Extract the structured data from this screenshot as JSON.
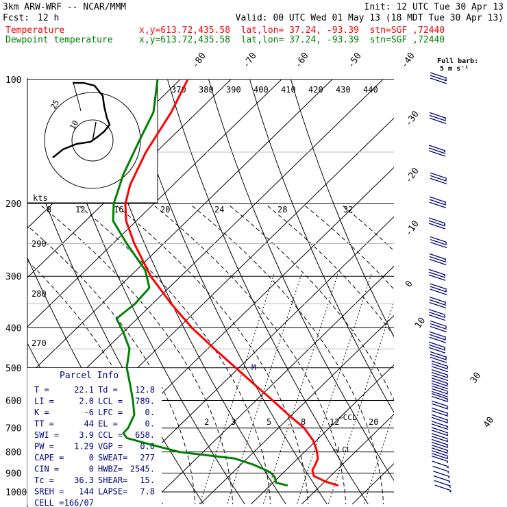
{
  "header": {
    "model": "3km ARW-WRF -- NCAR/MMM",
    "init": "Init: 12 UTC Tue 30 Apr 13",
    "fcst_label": "Fcst:",
    "fcst_value": "12 h",
    "valid": "Valid: 00 UTC Wed 01 May 13 (18 MDT Tue 30 Apr 13)",
    "temp_line": {
      "name": "Temperature",
      "info": "x,y=613.72,435.58  lat,lon= 37.24, -93.39  stn=SGF ,72440"
    },
    "dew_line": {
      "name": "Dewpoint temperature",
      "info": "x,y=613.72,435.58  lat,lon= 37.24, -93.39  stn=SGF ,72440"
    }
  },
  "barb_legend": {
    "line1": "Full barb:",
    "line2": "5 m s⁻¹"
  },
  "hodograph": {
    "unit": "kts",
    "ring_labels": [
      "10",
      "25"
    ]
  },
  "parcel_info": {
    "title": "Parcel Info",
    "rows": [
      [
        "T  =",
        "22.1",
        "Td  =",
        "12.8"
      ],
      [
        "LI =",
        "2.0",
        "LCL =",
        "789."
      ],
      [
        "K  =",
        "-6",
        "LFC =",
        "0."
      ],
      [
        "TT =",
        "44",
        "EL  =",
        "0."
      ],
      [
        "SWI =",
        "3.9",
        "CCL =",
        "658."
      ],
      [
        "PW =",
        "1.29",
        "VGP =",
        "0.0"
      ],
      [
        "CAPE =",
        "0",
        "SWEAT=",
        "277"
      ],
      [
        "CIN =",
        "0",
        "HWBZ=",
        "2545."
      ],
      [
        "Tc =",
        "36.3",
        "SHEAR=",
        "15."
      ],
      [
        "SREH =",
        "144",
        "LAPSE=",
        "7.8"
      ],
      [
        "CELL =",
        "166/07",
        "",
        ""
      ]
    ]
  },
  "chart_data": {
    "type": "line",
    "subtype": "skew-T log-P sounding",
    "y_axis": {
      "label": "",
      "scale": "log",
      "range": [
        1000,
        100
      ],
      "ticks": [
        100,
        200,
        300,
        400,
        500,
        600,
        700,
        800,
        900,
        1000
      ]
    },
    "isotherm_labels_top": [
      "-80",
      "-70",
      "-60",
      "-50",
      "-40"
    ],
    "isotherm_labels_right": [
      "-30",
      "-20",
      "-10",
      "0",
      "10",
      "30",
      "40"
    ],
    "theta_labels_top": [
      "370",
      "380",
      "390",
      "400",
      "410",
      "420",
      "430",
      "440"
    ],
    "theta_labels_left": [
      "290",
      "280",
      "270"
    ],
    "mixing_ratio_labels": [
      "2",
      "3",
      "5",
      "8",
      "12",
      "20"
    ],
    "hodo_speed_labels": [
      "8",
      "12",
      "16",
      "20",
      "24",
      "28",
      "32"
    ],
    "markers": {
      "ccl": "CCL",
      "lcl": "LCL",
      "m": "M"
    },
    "series": [
      {
        "name": "Temperature",
        "color": "#ff0000",
        "points": [
          [
            965,
            494
          ],
          [
            945,
            476
          ],
          [
            915,
            458
          ],
          [
            885,
            456
          ],
          [
            860,
            460
          ],
          [
            830,
            464
          ],
          [
            790,
            462
          ],
          [
            750,
            457
          ],
          [
            700,
            444
          ],
          [
            650,
            421
          ],
          [
            600,
            398
          ],
          [
            550,
            372
          ],
          [
            500,
            344
          ],
          [
            450,
            313
          ],
          [
            400,
            280
          ],
          [
            350,
            250
          ],
          [
            300,
            220
          ],
          [
            250,
            196
          ],
          [
            220,
            184
          ],
          [
            200,
            183
          ],
          [
            180,
            190
          ],
          [
            150,
            213
          ],
          [
            120,
            250
          ],
          [
            100,
            274
          ]
        ]
      },
      {
        "name": "Dewpoint temperature",
        "color": "#008000",
        "points": [
          [
            965,
            420
          ],
          [
            950,
            403
          ],
          [
            920,
            401
          ],
          [
            895,
            394
          ],
          [
            860,
            371
          ],
          [
            830,
            343
          ],
          [
            800,
            262
          ],
          [
            780,
            236
          ],
          [
            760,
            210
          ],
          [
            740,
            185
          ],
          [
            720,
            180
          ],
          [
            700,
            187
          ],
          [
            650,
            196
          ],
          [
            600,
            194
          ],
          [
            550,
            190
          ],
          [
            500,
            185
          ],
          [
            450,
            189
          ],
          [
            410,
            180
          ],
          [
            380,
            170
          ],
          [
            350,
            197
          ],
          [
            320,
            218
          ],
          [
            290,
            212
          ],
          [
            250,
            185
          ],
          [
            220,
            165
          ],
          [
            200,
            166
          ],
          [
            170,
            180
          ],
          [
            140,
            204
          ],
          [
            120,
            224
          ],
          [
            100,
            230
          ]
        ]
      }
    ]
  }
}
